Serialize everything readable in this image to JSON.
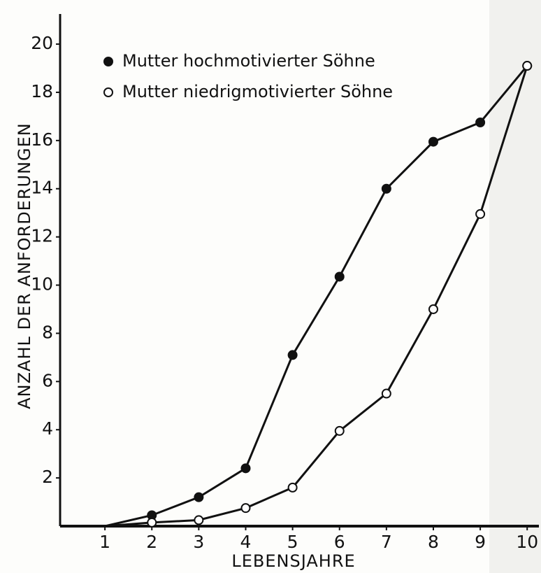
{
  "chart_data": {
    "type": "line",
    "y_label": "ANZAHL DER ANFORDERUNGEN",
    "x_label": "LEBENSJAHRE",
    "x": [
      1,
      2,
      3,
      4,
      5,
      6,
      7,
      8,
      9,
      10
    ],
    "series": [
      {
        "name": "Mutter hochmotivierter Söhne",
        "color": "#111111",
        "marker": "filled",
        "values": [
          0,
          0.45,
          1.2,
          2.4,
          7.1,
          10.35,
          14,
          15.95,
          16.75,
          19.1
        ]
      },
      {
        "name": "Mutter niedrigmotivierter Söhne",
        "color": "#111111",
        "marker": "open",
        "values": [
          0,
          0.15,
          0.25,
          0.75,
          1.6,
          3.95,
          5.5,
          9,
          12.95,
          19.1
        ]
      }
    ],
    "xlim": [
      0,
      10.25
    ],
    "ylim": [
      0,
      21.25
    ],
    "xticks": [
      1,
      2,
      3,
      4,
      5,
      6,
      7,
      8,
      9,
      10
    ],
    "yticks": [
      2,
      4,
      6,
      8,
      10,
      12,
      14,
      16,
      18,
      20
    ],
    "legend": "top-left",
    "grid": false
  }
}
